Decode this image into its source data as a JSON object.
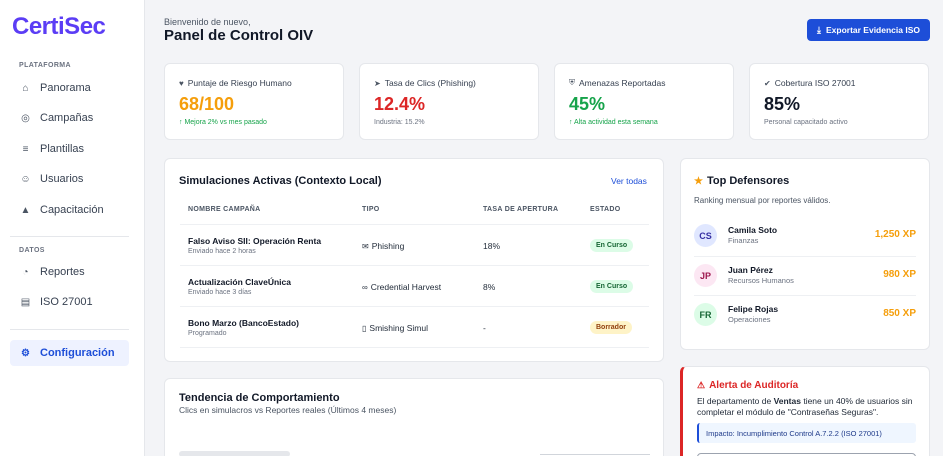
{
  "app": {
    "logo": "CertiSec"
  },
  "sidebar": {
    "section_platform": "PLATAFORMA",
    "section_data": "DATOS",
    "items": [
      {
        "label": "Panorama",
        "icon": "home-icon"
      },
      {
        "label": "Campañas",
        "icon": "target-icon"
      },
      {
        "label": "Plantillas",
        "icon": "layers-icon"
      },
      {
        "label": "Usuarios",
        "icon": "users-icon"
      },
      {
        "label": "Capacitación",
        "icon": "graduation-cap-icon"
      },
      {
        "label": "Reportes",
        "icon": "pie-chart-icon"
      },
      {
        "label": "ISO 27001",
        "icon": "file-icon"
      },
      {
        "label": "Configuración",
        "icon": "gear-icon",
        "active": true
      }
    ]
  },
  "header": {
    "welcome": "Bienvenido de nuevo,",
    "title": "Panel de Control OIV",
    "export_label": "Exportar Evidencia ISO"
  },
  "kpis": [
    {
      "label": "Puntaje de Riesgo Humano",
      "value": "68/100",
      "sub": "↑ Mejora 2% vs mes pasado",
      "color": "#f59e0b",
      "icon": "heart-pulse-icon"
    },
    {
      "label": "Tasa de Clics (Phishing)",
      "value": "12.4%",
      "sub": "Industria: 15.2%",
      "color": "#dc2626",
      "icon": "cursor-click-icon"
    },
    {
      "label": "Amenazas Reportadas",
      "value": "45%",
      "sub": "↑ Alta actividad esta semana",
      "color": "#16a34a",
      "icon": "shield-icon"
    },
    {
      "label": "Cobertura ISO 27001",
      "value": "85%",
      "sub": "Personal capacitado activo",
      "color": "#111827",
      "icon": "check-circle-icon"
    }
  ],
  "simulations": {
    "title": "Simulaciones Activas (Contexto Local)",
    "view_all": "Ver todas",
    "columns": [
      "NOMBRE CAMPAÑA",
      "TIPO",
      "TASA DE APERTURA",
      "ESTADO"
    ],
    "rows": [
      {
        "name": "Falso Aviso SII: Operación Renta",
        "sub": "Enviado hace 2 horas",
        "type": "Phishing",
        "type_icon": "envelope-icon",
        "rate": "18%",
        "status": "En Curso",
        "status_kind": "run"
      },
      {
        "name": "Actualización ClaveÚnica",
        "sub": "Enviado hace 3 días",
        "type": "Credential Harvest",
        "type_icon": "link-icon",
        "rate": "8%",
        "status": "En Curso",
        "status_kind": "run"
      },
      {
        "name": "Bono Marzo (BancoEstado)",
        "sub": "Programado",
        "type": "Smishing Simul",
        "type_icon": "phone-icon",
        "rate": "-",
        "status": "Borrador",
        "status_kind": "draft"
      }
    ]
  },
  "defenders": {
    "title": "Top Defensores",
    "subtitle": "Ranking mensual por reportes válidos.",
    "items": [
      {
        "initials": "CS",
        "name": "Camila Soto",
        "dept": "Finanzas",
        "xp": "1,250 XP",
        "bg": "#e0e7ff",
        "fg": "#3730a3"
      },
      {
        "initials": "JP",
        "name": "Juan Pérez",
        "dept": "Recursos Humanos",
        "xp": "980 XP",
        "bg": "#fce7f3",
        "fg": "#9d174d"
      },
      {
        "initials": "FR",
        "name": "Felipe Rojas",
        "dept": "Operaciones",
        "xp": "850 XP",
        "bg": "#dcfce7",
        "fg": "#166534"
      }
    ]
  },
  "trend": {
    "title": "Tendencia de Comportamiento",
    "subtitle": "Clics en simulacros vs Reportes reales (Últimos 4 meses)"
  },
  "alert": {
    "title": "Alerta de Auditoría",
    "text_before": "El departamento de ",
    "text_bold": "Ventas",
    "text_after": " tiene un 40% de usuarios sin completar el módulo de \"Contraseñas Seguras\".",
    "impact": "Impacto: Incumplimiento Control A.7.2.2 (ISO 27001)"
  }
}
